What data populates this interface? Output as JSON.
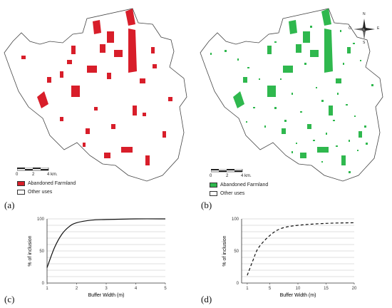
{
  "colors": {
    "red": "#d81e2a",
    "green": "#2fb84e",
    "outline": "#444444",
    "grid": "#bfbfbf"
  },
  "panels": {
    "a": {
      "letter": "(a)"
    },
    "b": {
      "letter": "(b)"
    },
    "c": {
      "letter": "(c)"
    },
    "d": {
      "letter": "(d)"
    }
  },
  "legend_a": {
    "item1": "Abandoned Farmland",
    "item2": "Other uses"
  },
  "legend_b": {
    "item1": "Abandoned Farmland",
    "item2": "Other uses"
  },
  "scale_bar": {
    "t0": "0",
    "t2": "2",
    "t4": "4 km."
  },
  "compass": {
    "n": "N",
    "s": "S",
    "e": "E",
    "o": "O"
  },
  "chart_data": [
    {
      "type": "line",
      "xlabel": "Buffer Width (m)",
      "ylabel": "% of inclusion",
      "xlim": [
        1,
        5
      ],
      "ylim": [
        0,
        100
      ],
      "xticks": [
        "1",
        "2",
        "3",
        "4",
        "5"
      ],
      "yticks": [
        "0",
        "50",
        "100"
      ],
      "line_style": "solid",
      "x": [
        1,
        1.25,
        1.5,
        1.75,
        2,
        2.5,
        3,
        4,
        5
      ],
      "y": [
        24,
        55,
        76,
        88,
        94,
        98,
        99,
        100,
        100
      ]
    },
    {
      "type": "line",
      "xlabel": "Buffer Width (m)",
      "ylabel": "% of inclusion",
      "xlim": [
        0,
        20
      ],
      "ylim": [
        0,
        100
      ],
      "xticks": [
        "1",
        "5",
        "10",
        "15",
        "20"
      ],
      "yticks": [
        "0",
        "50",
        "100"
      ],
      "line_style": "dashed",
      "x": [
        1,
        2,
        3,
        5,
        7,
        10,
        15,
        20
      ],
      "y": [
        12,
        35,
        55,
        74,
        85,
        90,
        93,
        94
      ]
    }
  ]
}
